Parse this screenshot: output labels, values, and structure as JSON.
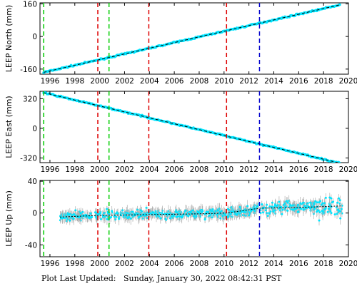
{
  "footer": {
    "label": "Plot Last Updated:",
    "timestamp": "Sunday, January 30, 2022 08:42:31 PST"
  },
  "chart_data": [
    {
      "type": "scatter",
      "ylabel": "LEEP North (mm)",
      "xlim": [
        1995.2,
        2020.0
      ],
      "ylim": [
        -185,
        165
      ],
      "yticks": [
        160,
        0,
        -160
      ],
      "xticks": [
        1996,
        1998,
        2000,
        2002,
        2004,
        2006,
        2008,
        2010,
        2012,
        2014,
        2016,
        2018,
        2020
      ],
      "grid": false,
      "series": [
        {
          "role": "observations",
          "color": "#00e5ff",
          "x": [
            1995.5,
            2019.3
          ],
          "y": [
            -176,
            155
          ]
        },
        {
          "role": "model-fit",
          "color": "#000000",
          "style": "dashed",
          "x": [
            1995.5,
            2019.3
          ],
          "y": [
            -176,
            155
          ]
        }
      ],
      "vlines": [
        {
          "x": 1995.5,
          "color": "#00cc00"
        },
        {
          "x": 1999.85,
          "color": "#dd0000"
        },
        {
          "x": 2000.75,
          "color": "#00cc00"
        },
        {
          "x": 2003.95,
          "color": "#dd0000"
        },
        {
          "x": 2010.2,
          "color": "#dd0000"
        },
        {
          "x": 2012.85,
          "color": "#0000cc"
        }
      ]
    },
    {
      "type": "scatter",
      "ylabel": "LEEP East (mm)",
      "xlim": [
        1995.2,
        2020.0
      ],
      "ylim": [
        -370,
        400
      ],
      "yticks": [
        320,
        0,
        -320
      ],
      "xticks": [
        1996,
        1998,
        2000,
        2002,
        2004,
        2006,
        2008,
        2010,
        2012,
        2014,
        2016,
        2018,
        2020
      ],
      "grid": false,
      "series": [
        {
          "role": "observations",
          "color": "#00e5ff",
          "x": [
            1995.5,
            2019.3
          ],
          "y": [
            385,
            -375
          ]
        },
        {
          "role": "model-fit",
          "color": "#000000",
          "style": "dashed",
          "x": [
            1995.5,
            2019.3
          ],
          "y": [
            385,
            -375
          ]
        }
      ],
      "vlines": [
        {
          "x": 1995.5,
          "color": "#00cc00"
        },
        {
          "x": 1999.85,
          "color": "#dd0000"
        },
        {
          "x": 2000.75,
          "color": "#00cc00"
        },
        {
          "x": 2003.95,
          "color": "#dd0000"
        },
        {
          "x": 2010.2,
          "color": "#dd0000"
        },
        {
          "x": 2012.85,
          "color": "#0000cc"
        }
      ]
    },
    {
      "type": "scatter",
      "ylabel": "LEEP Up (mm)",
      "xlim": [
        1995.2,
        2020.0
      ],
      "ylim": [
        -55,
        41
      ],
      "yticks": [
        40,
        0,
        -40
      ],
      "xticks": [
        1996,
        1998,
        2000,
        2002,
        2004,
        2006,
        2008,
        2010,
        2012,
        2014,
        2016,
        2018,
        2020
      ],
      "grid": false,
      "series": [
        {
          "role": "observations",
          "color": "#00e5ff",
          "x_range": [
            1996.8,
            2019.5
          ],
          "error_bar_color": "#b0b0b0"
        },
        {
          "role": "model-fit",
          "color": "#000000",
          "style": "dotted",
          "x": [
            1996.8,
            2000,
            2004,
            2008,
            2010.2,
            2012.85,
            2016,
            2019.5
          ],
          "y": [
            -5,
            -3,
            -2,
            -1,
            0,
            6,
            7,
            9
          ]
        }
      ],
      "vlines": [
        {
          "x": 1995.5,
          "color": "#00cc00"
        },
        {
          "x": 1999.85,
          "color": "#dd0000"
        },
        {
          "x": 2000.75,
          "color": "#00cc00"
        },
        {
          "x": 2003.95,
          "color": "#dd0000"
        },
        {
          "x": 2010.2,
          "color": "#dd0000"
        },
        {
          "x": 2012.85,
          "color": "#0000cc"
        }
      ]
    }
  ]
}
